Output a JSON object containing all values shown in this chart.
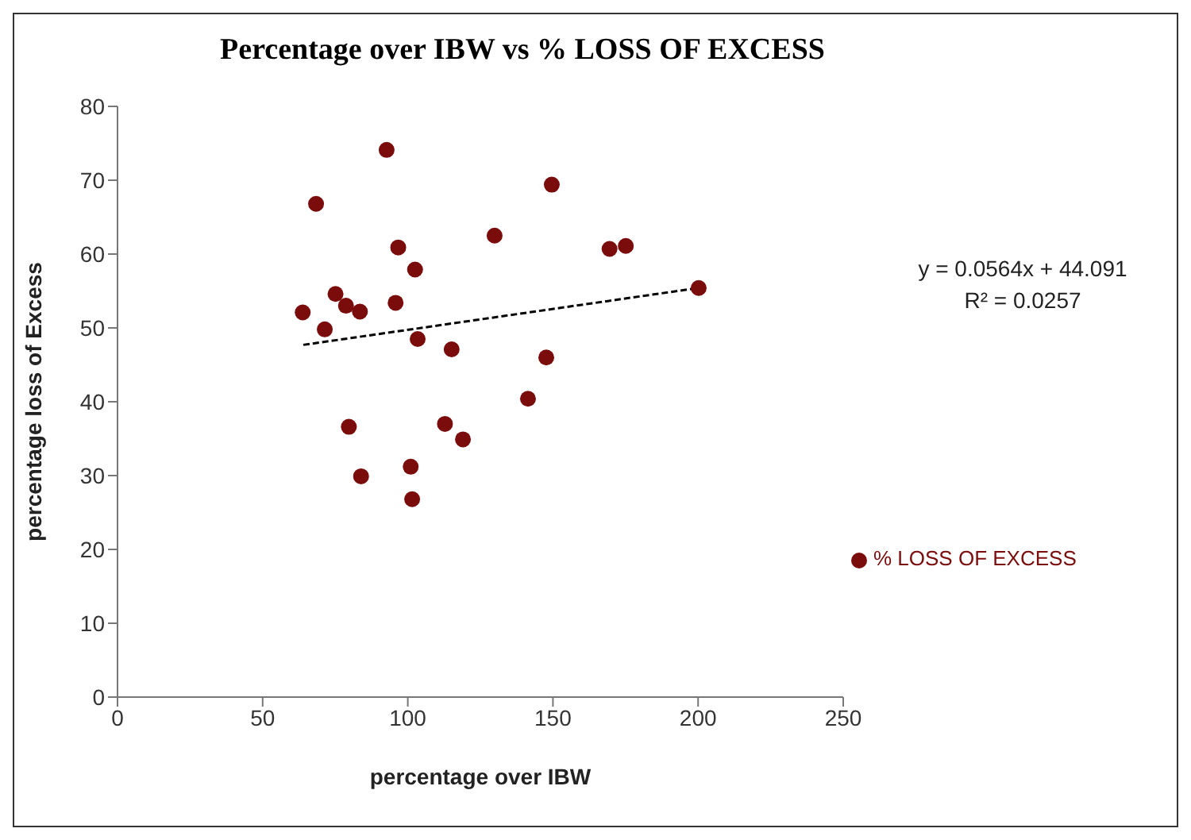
{
  "chart_data": {
    "type": "scatter",
    "title": "Percentage over IBW vs % LOSS OF EXCESS",
    "xlabel": "percentage over IBW",
    "ylabel": "percentage loss of Excess",
    "xlim": [
      0,
      250
    ],
    "xticks": [
      0,
      50,
      100,
      150,
      200,
      250
    ],
    "ylim": [
      0,
      80
    ],
    "yticks": [
      0,
      10,
      20,
      30,
      40,
      50,
      60,
      70,
      80
    ],
    "grid": false,
    "legend": "right",
    "marker": "circle",
    "series": [
      {
        "name": "% LOSS OF EXCESS",
        "color": "#7b0c0c",
        "x": [
          92.7,
          68.4,
          149.6,
          129.9,
          96.7,
          102.5,
          75.1,
          78.7,
          83.5,
          95.8,
          63.8,
          71.4,
          103.4,
          115.1,
          147.7,
          141.4,
          79.7,
          112.8,
          119.0,
          101.0,
          83.9,
          101.5,
          169.5,
          175.1,
          200.2
        ],
        "values": [
          74.1,
          66.8,
          69.4,
          62.5,
          60.9,
          57.9,
          54.6,
          53.0,
          52.2,
          53.4,
          52.1,
          49.8,
          48.5,
          47.1,
          46.0,
          40.4,
          36.6,
          37.0,
          34.9,
          31.2,
          29.9,
          26.8,
          60.7,
          61.1,
          55.4
        ]
      },
      {
        "type": "line",
        "color": "#000000",
        "line_style": "dashed",
        "marker": "none",
        "x": [
          64,
          200
        ],
        "values": [
          47.7,
          55.4
        ]
      }
    ],
    "annotations": [
      "y = 0.0564x + 44.091",
      "R² = 0.0257"
    ]
  }
}
